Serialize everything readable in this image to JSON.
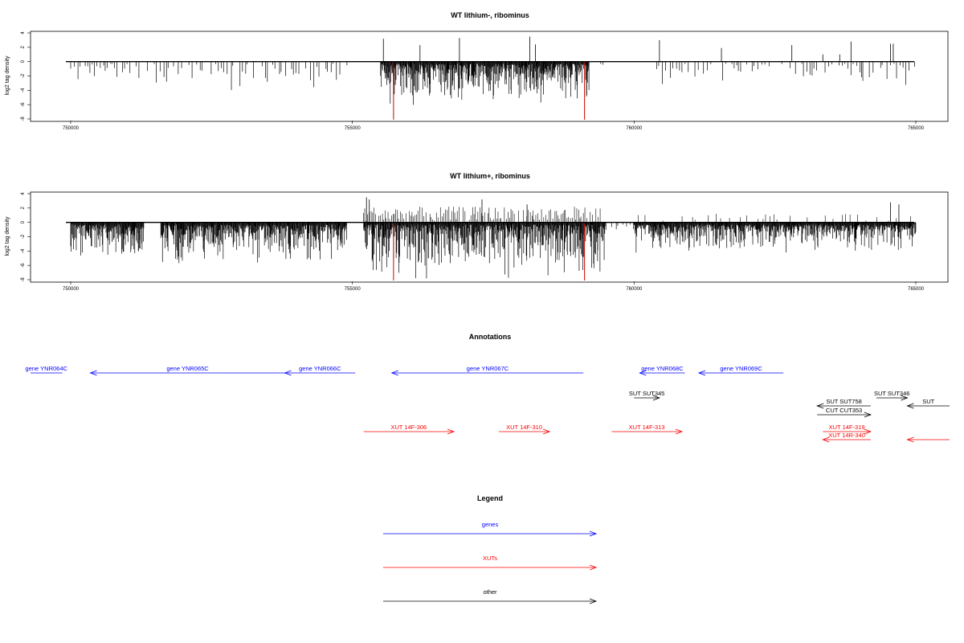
{
  "chart_data": [
    {
      "type": "bar",
      "title": "WT lithium-, ribominus",
      "xlabel": "",
      "ylabel": "log2 tag density",
      "xlim": [
        750000,
        765000
      ],
      "ylim": [
        -8,
        4
      ],
      "x_ticks": [
        "750000",
        "755000",
        "760000",
        "765000"
      ],
      "y_ticks": [
        "-8",
        "-6",
        "-4",
        "-2",
        "0",
        "2",
        "4"
      ],
      "highlight_color": "#cc0000",
      "highlight_bars": [
        {
          "x": 755730,
          "value": -8.1
        },
        {
          "x": 759120,
          "value": -8.1
        }
      ],
      "positive_peaks": [
        {
          "x": 755550,
          "value": 3.2
        },
        {
          "x": 756200,
          "value": 2.3
        },
        {
          "x": 756900,
          "value": 3.3
        },
        {
          "x": 758150,
          "value": 3.5
        },
        {
          "x": 758250,
          "value": 2.4
        },
        {
          "x": 760450,
          "value": 3.0
        },
        {
          "x": 761550,
          "value": 1.9
        },
        {
          "x": 762800,
          "value": 2.3
        },
        {
          "x": 763350,
          "value": 1.0
        },
        {
          "x": 763650,
          "value": 1.0
        },
        {
          "x": 763850,
          "value": 2.8
        },
        {
          "x": 764550,
          "value": 2.5
        },
        {
          "x": 764600,
          "value": 2.5
        }
      ],
      "negative_segments": [
        {
          "start": 750000,
          "end": 751000,
          "min": -3.5,
          "density": "sparse"
        },
        {
          "start": 751000,
          "end": 755000,
          "min": -4.0,
          "density": "sparse"
        },
        {
          "start": 755500,
          "end": 759200,
          "min": -6.0,
          "density": "dense"
        },
        {
          "start": 759200,
          "end": 759500,
          "min": -1.5,
          "density": "sparse"
        },
        {
          "start": 760400,
          "end": 765000,
          "min": -4.0,
          "density": "sparse"
        }
      ]
    },
    {
      "type": "bar",
      "title": "WT lithium+, ribominus",
      "xlabel": "",
      "ylabel": "log2 tag density",
      "xlim": [
        750000,
        765000
      ],
      "ylim": [
        -8,
        4
      ],
      "x_ticks": [
        "750000",
        "755000",
        "760000",
        "765000"
      ],
      "y_ticks": [
        "-8",
        "-6",
        "-4",
        "-2",
        "0",
        "2",
        "4"
      ],
      "highlight_color": "#cc0000",
      "highlight_bars": [
        {
          "x": 755730,
          "value": -8.1
        },
        {
          "x": 759120,
          "value": -8.1
        }
      ],
      "positive_peaks": [
        {
          "x": 755250,
          "value": 3.5
        },
        {
          "x": 755300,
          "value": 3.2
        },
        {
          "x": 757300,
          "value": 3.2
        },
        {
          "x": 758100,
          "value": 2.5
        },
        {
          "x": 764550,
          "value": 2.8
        },
        {
          "x": 764700,
          "value": 2.5
        }
      ],
      "negative_segments": [
        {
          "start": 750000,
          "end": 751300,
          "min": -5.0,
          "density": "dense"
        },
        {
          "start": 751600,
          "end": 754900,
          "min": -6.0,
          "density": "dense"
        },
        {
          "start": 755200,
          "end": 759500,
          "min": -8.0,
          "density": "dense"
        },
        {
          "start": 759600,
          "end": 760300,
          "min": -1.5,
          "density": "sparse"
        },
        {
          "start": 760000,
          "end": 765000,
          "min": -4.0,
          "density": "dense"
        }
      ]
    }
  ],
  "annotations": {
    "title": "Annotations",
    "features": [
      {
        "label": "gene YNR064C",
        "type": "gene",
        "color": "#0000ff",
        "start": 748000,
        "end": 749850,
        "dir": "left",
        "row": 0
      },
      {
        "label": "gene YNR065C",
        "type": "gene",
        "color": "#0000ff",
        "start": 750350,
        "end": 753800,
        "dir": "left",
        "row": 0
      },
      {
        "label": "gene YNR066C",
        "type": "gene",
        "color": "#0000ff",
        "start": 753800,
        "end": 755050,
        "dir": "left",
        "row": 0
      },
      {
        "label": "gene YNR067C",
        "type": "gene",
        "color": "#0000ff",
        "start": 755700,
        "end": 759100,
        "dir": "left",
        "row": 0
      },
      {
        "label": "gene YNR068C",
        "type": "gene",
        "color": "#0000ff",
        "start": 760100,
        "end": 760900,
        "dir": "left",
        "row": 0
      },
      {
        "label": "gene YNR069C",
        "type": "gene",
        "color": "#0000ff",
        "start": 761150,
        "end": 762650,
        "dir": "left",
        "row": 0
      },
      {
        "label": "SUT SUT345",
        "type": "other",
        "color": "#000000",
        "start": 760000,
        "end": 760450,
        "dir": "right",
        "row": 1
      },
      {
        "label": "SUT SUT346",
        "type": "other",
        "color": "#000000",
        "start": 764300,
        "end": 764850,
        "dir": "right",
        "row": 1
      },
      {
        "label": "SUT SUT758",
        "type": "other",
        "color": "#000000",
        "start": 763250,
        "end": 764200,
        "dir": "left",
        "row": 2
      },
      {
        "label": "SUT",
        "type": "other",
        "color": "#000000",
        "start": 764850,
        "end": 766000,
        "dir": "left",
        "row": 2
      },
      {
        "label": "CUT CUT353",
        "type": "other",
        "color": "#000000",
        "start": 763250,
        "end": 764200,
        "dir": "right",
        "row": 3
      },
      {
        "label": "XUT 14F-306",
        "type": "xut",
        "color": "#ff0000",
        "start": 755200,
        "end": 756800,
        "dir": "right",
        "row": 4
      },
      {
        "label": "XUT 14F-310",
        "type": "xut",
        "color": "#ff0000",
        "start": 757600,
        "end": 758500,
        "dir": "right",
        "row": 4
      },
      {
        "label": "XUT 14F-313",
        "type": "xut",
        "color": "#ff0000",
        "start": 759600,
        "end": 760850,
        "dir": "right",
        "row": 4
      },
      {
        "label": "XUT 14F-319",
        "type": "xut",
        "color": "#ff0000",
        "start": 763350,
        "end": 764200,
        "dir": "right",
        "row": 4
      },
      {
        "label": "XUT 14R-340",
        "type": "xut",
        "color": "#ff0000",
        "start": 763350,
        "end": 764200,
        "dir": "left",
        "row": 5
      },
      {
        "label": "",
        "type": "xut",
        "color": "#ff0000",
        "start": 764850,
        "end": 766000,
        "dir": "left",
        "row": 5
      }
    ]
  },
  "legend": {
    "title": "Legend",
    "items": [
      {
        "label": "genes",
        "color": "#0000ff"
      },
      {
        "label": "XUTs",
        "color": "#ff0000"
      },
      {
        "label": "other",
        "color": "#000000"
      }
    ]
  }
}
